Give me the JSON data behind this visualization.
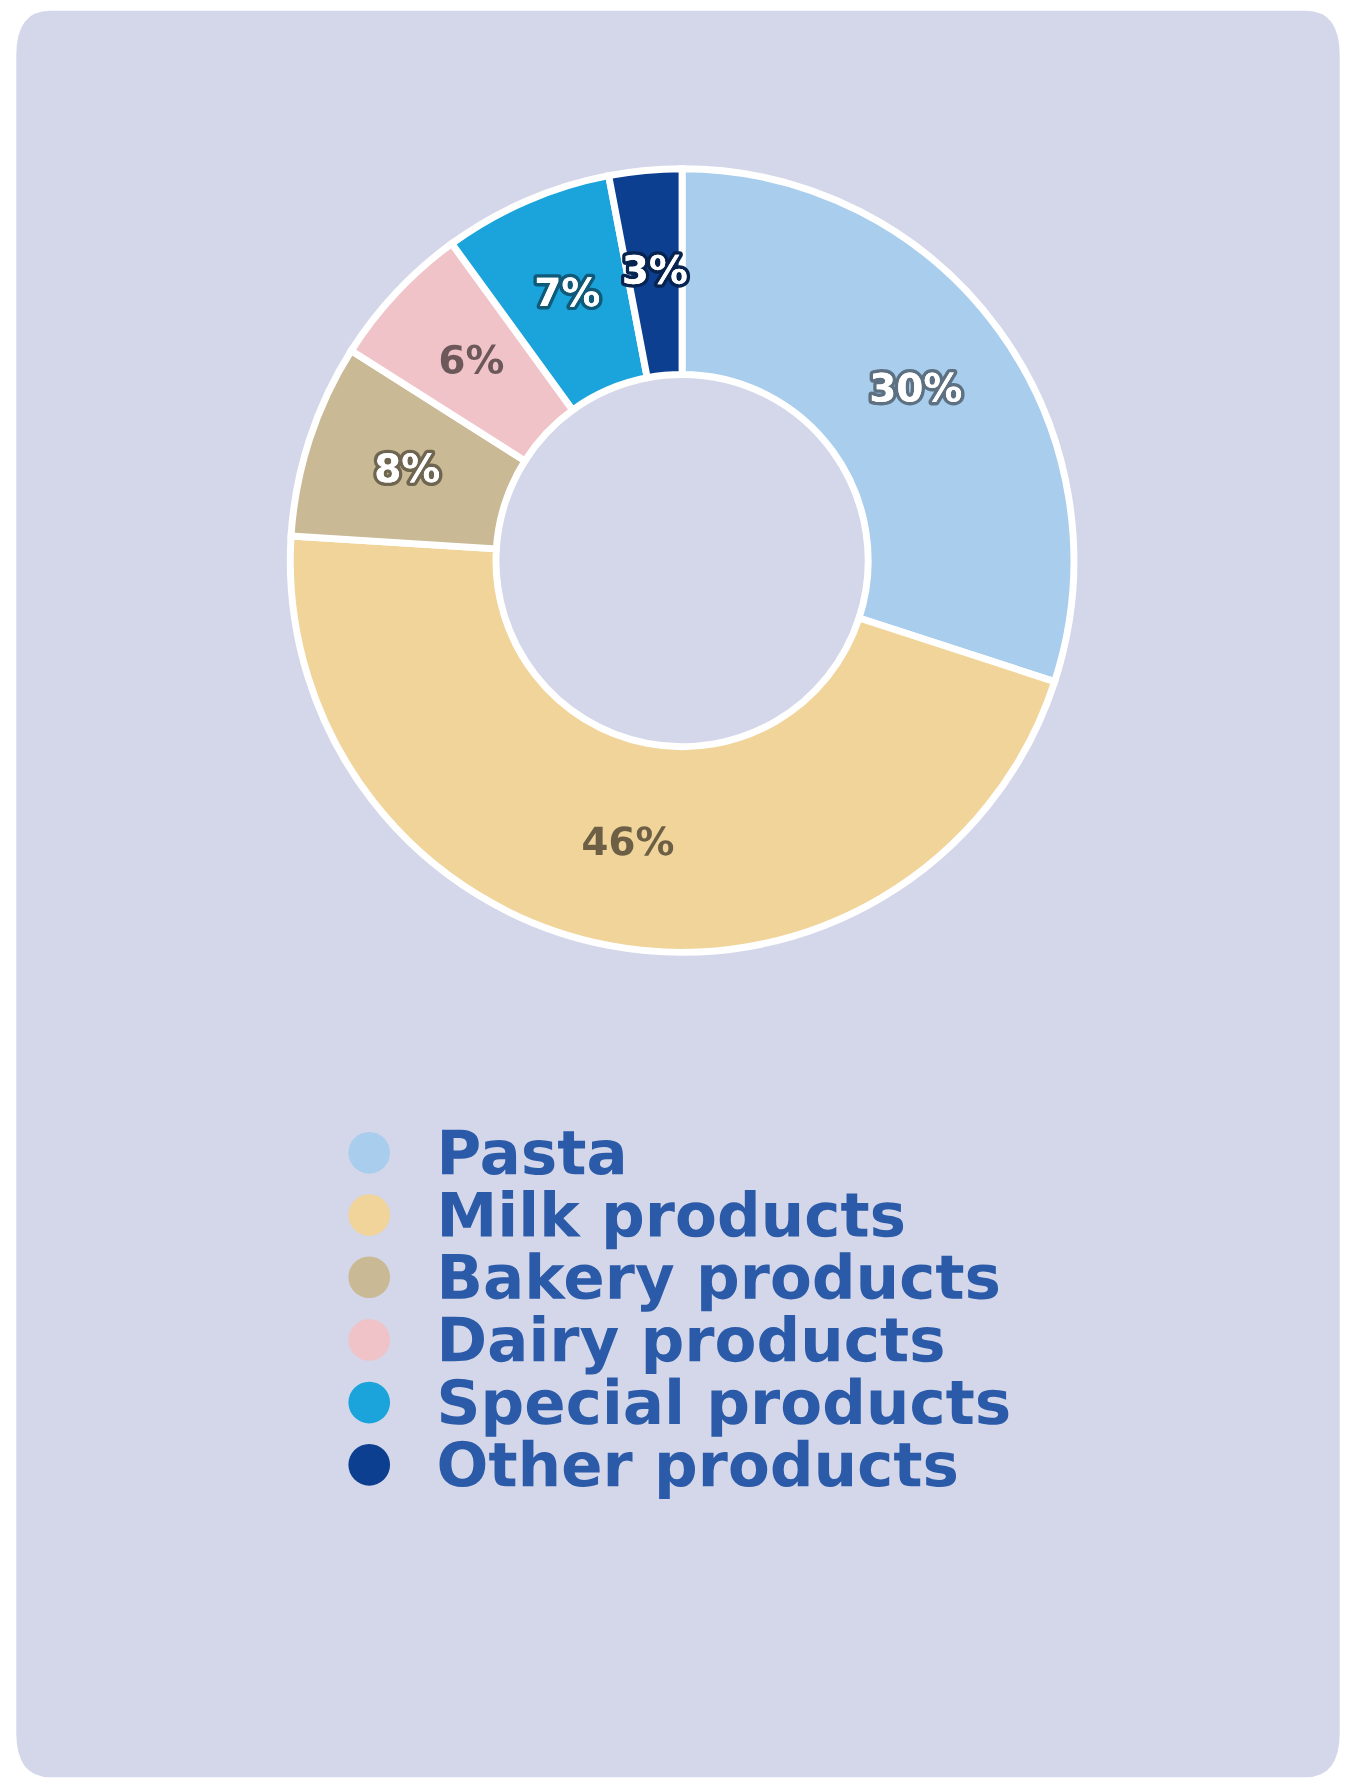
{
  "chart_data": {
    "type": "donut",
    "categories": [
      "Pasta",
      "Milk products",
      "Bakery products",
      "Dairy products",
      "Special products",
      "Other products"
    ],
    "values": [
      30,
      46,
      8,
      6,
      7,
      3
    ],
    "colors": [
      "#a9cdec",
      "#f0d49a",
      "#c9b994",
      "#efc3c8",
      "#1ba3dc",
      "#0c3f8f"
    ],
    "value_labels": [
      "30%",
      "46%",
      "8%",
      "6%",
      "7%",
      "3%"
    ],
    "legend": "bottom"
  }
}
